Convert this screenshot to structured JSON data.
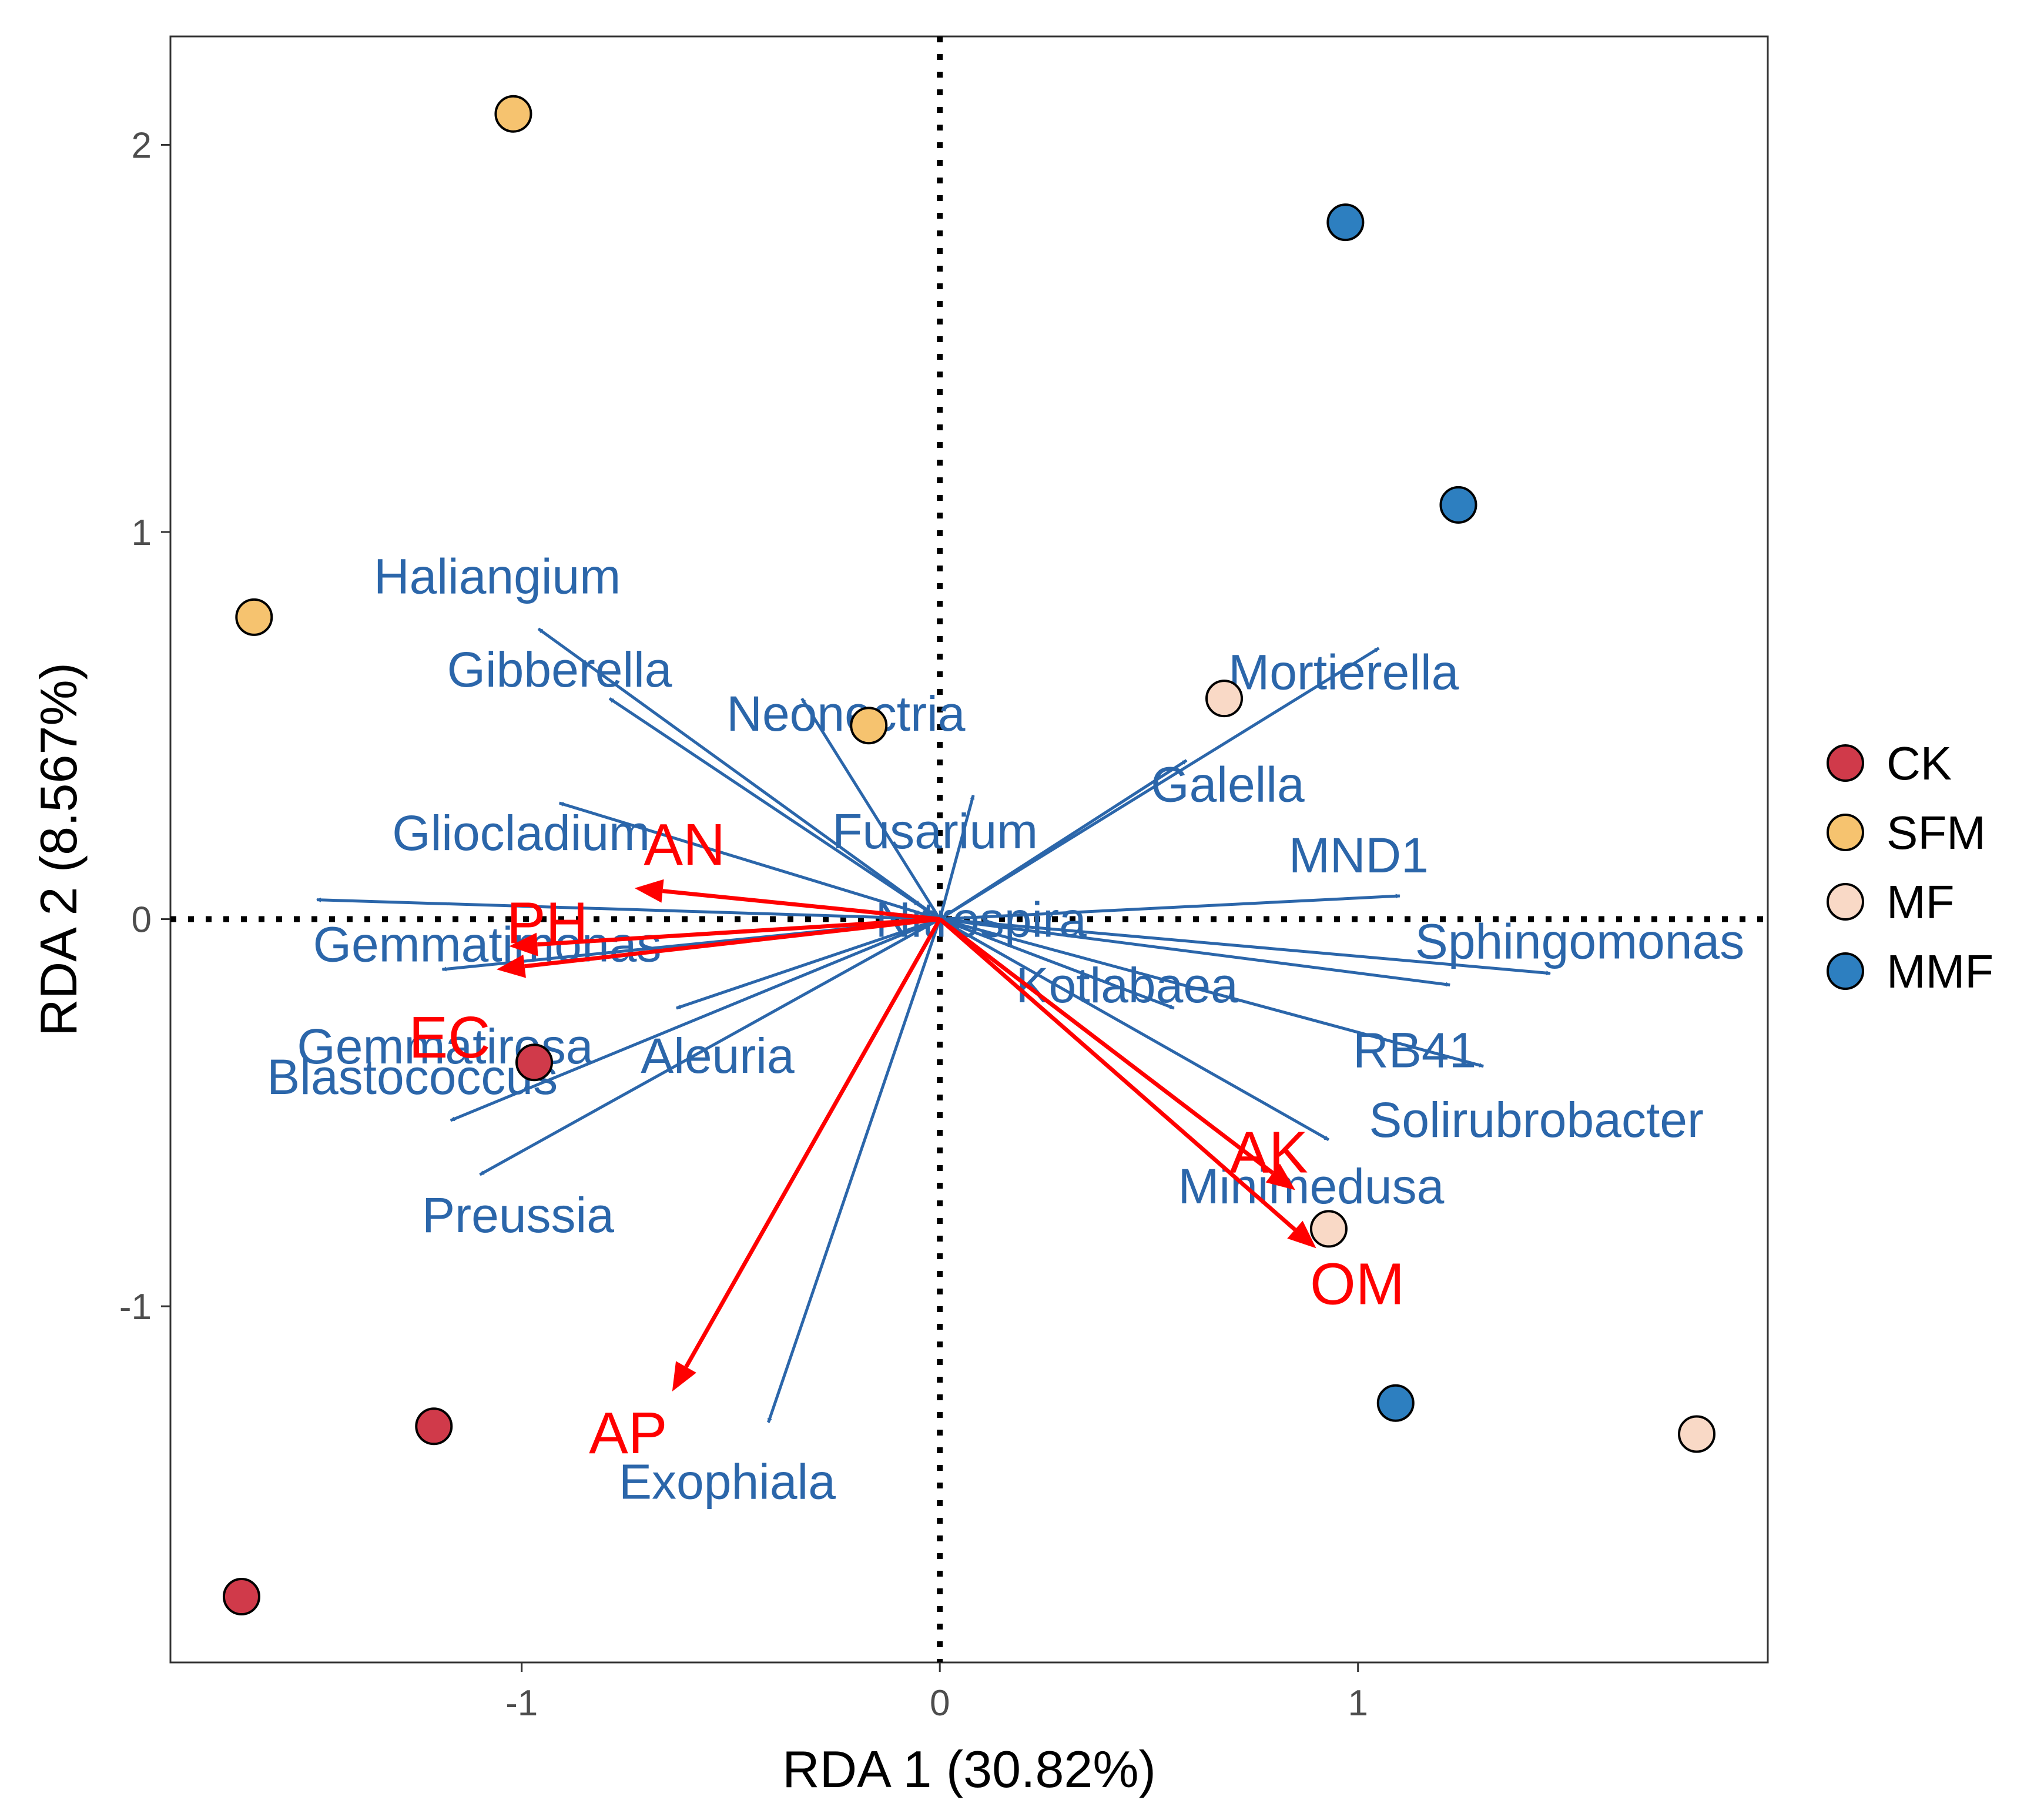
{
  "chart_data": {
    "type": "scatter",
    "title": "",
    "xlabel": "RDA 1 (30.82%)",
    "ylabel": "RDA 2 (8.567%)",
    "xlim": [
      -1.84,
      1.98
    ],
    "ylim": [
      -1.92,
      2.28
    ],
    "xticks": [
      -1,
      0,
      1
    ],
    "xtick_labels": [
      "-1",
      "0",
      "1"
    ],
    "yticks": [
      -1,
      0,
      1,
      2
    ],
    "ytick_labels": [
      "-1",
      "0",
      "1",
      "2"
    ],
    "grid": false,
    "reference_lines": {
      "x": 0,
      "y": 0,
      "style": "dotted"
    },
    "legend": {
      "position": "right",
      "entries": [
        {
          "name": "CK",
          "color": "#d03a4a"
        },
        {
          "name": "SFM",
          "color": "#f6c36f"
        },
        {
          "name": "MF",
          "color": "#f9d9c6"
        },
        {
          "name": "MMF",
          "color": "#2d7fc0"
        }
      ]
    },
    "series": [
      {
        "name": "CK",
        "color": "#d03a4a",
        "points": [
          [
            -0.97,
            -0.37
          ],
          [
            -1.21,
            -1.31
          ],
          [
            -1.67,
            -1.75
          ]
        ]
      },
      {
        "name": "SFM",
        "color": "#f6c36f",
        "points": [
          [
            -1.02,
            2.08
          ],
          [
            -1.64,
            0.78
          ],
          [
            -0.17,
            0.5
          ]
        ]
      },
      {
        "name": "MF",
        "color": "#f9d9c6",
        "points": [
          [
            0.68,
            0.57
          ],
          [
            0.93,
            -0.8
          ],
          [
            1.81,
            -1.33
          ]
        ]
      },
      {
        "name": "MMF",
        "color": "#2d7fc0",
        "points": [
          [
            0.97,
            1.8
          ],
          [
            1.24,
            1.07
          ],
          [
            1.09,
            -1.25
          ]
        ]
      }
    ],
    "species_arrows": {
      "color": "#2b66aa",
      "items": [
        {
          "label": "Haliangium",
          "x": -0.96,
          "y": 0.75
        },
        {
          "label": "Gibberella",
          "x": -0.79,
          "y": 0.57
        },
        {
          "label": "Neonectria",
          "x": -0.33,
          "y": 0.57
        },
        {
          "label": "Gliocladium",
          "x": -0.91,
          "y": 0.3
        },
        {
          "label": "Fusarium",
          "x": 0.08,
          "y": 0.32
        },
        {
          "label": "Gemmatimonas",
          "x": -1.49,
          "y": 0.05
        },
        {
          "label": "Gemmatirosa",
          "x": -1.19,
          "y": -0.13
        },
        {
          "label": "Aleuria",
          "x": -0.63,
          "y": -0.23
        },
        {
          "label": "Blastococcus",
          "x": -1.17,
          "y": -0.52
        },
        {
          "label": "Preussia",
          "x": -1.1,
          "y": -0.66
        },
        {
          "label": "Exophiala",
          "x": -0.41,
          "y": -1.3
        },
        {
          "label": "Mortierella",
          "x": 1.05,
          "y": 0.7
        },
        {
          "label": "Galella",
          "x": 0.59,
          "y": 0.41
        },
        {
          "label": "MND1",
          "x": 1.1,
          "y": 0.06
        },
        {
          "label": "Nitrospira",
          "x": 0.0,
          "y": 0.0
        },
        {
          "label": "Kotlabaea",
          "x": 0.56,
          "y": -0.23
        },
        {
          "label": "Sphingomonas",
          "x": 1.46,
          "y": -0.14
        },
        {
          "label": "RB41",
          "x": 1.22,
          "y": -0.17
        },
        {
          "label": "Solirubrobacter",
          "x": 1.3,
          "y": -0.38
        },
        {
          "label": "Minimedusa",
          "x": 0.93,
          "y": -0.57
        }
      ]
    },
    "environment_arrows": {
      "color": "#ff0000",
      "items": [
        {
          "label": "AN",
          "x": -0.73,
          "y": 0.08
        },
        {
          "label": "PH",
          "x": -1.03,
          "y": -0.07
        },
        {
          "label": "EC",
          "x": -1.06,
          "y": -0.13
        },
        {
          "label": "AP",
          "x": -0.64,
          "y": -1.22
        },
        {
          "label": "AK",
          "x": 0.85,
          "y": -0.7
        },
        {
          "label": "OM",
          "x": 0.9,
          "y": -0.85
        }
      ]
    }
  }
}
